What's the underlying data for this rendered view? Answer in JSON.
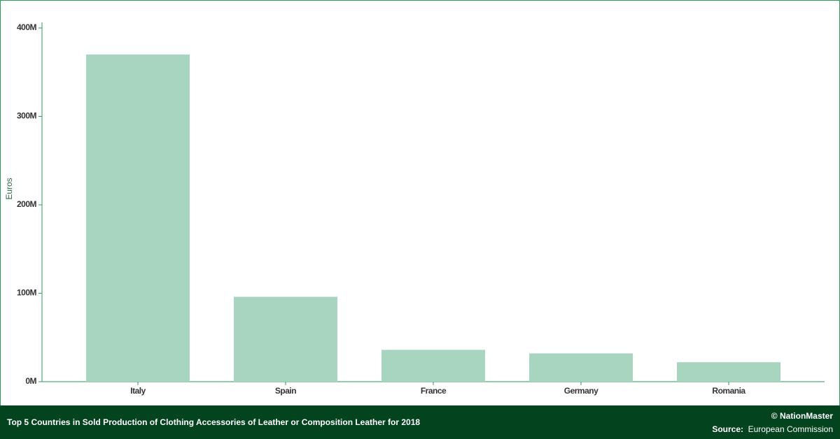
{
  "chart_data": {
    "type": "bar",
    "title": "Top 5 Countries in Sold Production of Clothing Accessories of Leather or Composition Leather for 2018",
    "y_label": "Euros",
    "categories": [
      "Italy",
      "Spain",
      "France",
      "Germany",
      "Romania"
    ],
    "values": [
      370000000,
      96000000,
      36000000,
      32000000,
      22000000
    ],
    "color": "#a8d5c0",
    "ylim": [
      0,
      400000000
    ],
    "yticks": [
      {
        "value": 0,
        "label": "0M"
      },
      {
        "value": 100000000,
        "label": "100M"
      },
      {
        "value": 200000000,
        "label": "200M"
      },
      {
        "value": 300000000,
        "label": "300M"
      },
      {
        "value": 400000000,
        "label": "400M"
      }
    ],
    "grid": false,
    "copyright": "© NationMaster",
    "source_label": "Source:",
    "source": "European Commission"
  }
}
